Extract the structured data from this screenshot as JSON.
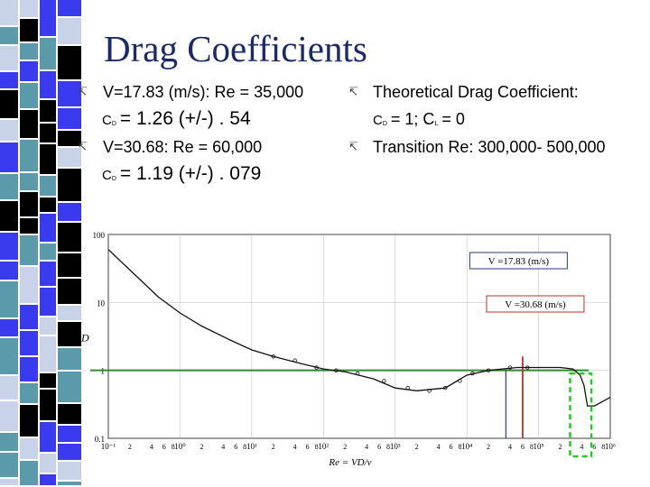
{
  "slide": {
    "title": "Drag Coefficients",
    "bullets_left": [
      {
        "text": "V=17.83 (m/s): Re = 35,000",
        "cd_value": "= 1.26  (+/-) . 54"
      },
      {
        "text": "V=30.68: Re = 60,000",
        "cd_value": "= 1.19  (+/-) . 079"
      }
    ],
    "bullets_right": [
      {
        "text": "Theoretical Drag Coefficient:",
        "cd_value": "= 1; C",
        "cl_sub": "L",
        "cl_value": "= 0"
      },
      {
        "text": "Transition Re: 300,000- 500,000"
      }
    ],
    "cd_symbol": "C",
    "cd_sub": "D",
    "bullet_glyph": "↸"
  },
  "colors": {
    "title": "#1a2a6a",
    "theory_line": "#2e8b2e",
    "v1_line": "#2a3a8a",
    "v2_line": "#c0302a",
    "transition_box": "#22cc22",
    "decor_black": "#000000",
    "decor_blue": "#3a3aee",
    "decor_teal": "#5a9aaa",
    "decor_light": "#c8d2e8"
  },
  "chart_data": {
    "type": "line",
    "xscale": "log",
    "yscale": "log",
    "xlim": [
      0.1,
      1000000
    ],
    "ylim": [
      0.1,
      100
    ],
    "ylabel": "C_D",
    "xlabel": "Re = VD/ν",
    "y_ticks": [
      "100",
      "10",
      "1",
      "0.1"
    ],
    "x_decade_labels": [
      "10⁻¹",
      "10⁰",
      "10¹",
      "10²",
      "10³",
      "10⁴",
      "10⁵",
      "10⁶"
    ],
    "x_minor_labels": [
      "2",
      "4",
      "6",
      "8"
    ],
    "series": [
      {
        "x": [
          0.1,
          0.2,
          0.5,
          1,
          2,
          5,
          10,
          20,
          50,
          100,
          200,
          500,
          1000,
          2000,
          5000,
          10000,
          20000,
          50000,
          100000,
          200000,
          300000,
          380000,
          430000,
          480000,
          600000,
          1000000
        ],
        "y": [
          60,
          30,
          12,
          7,
          4.5,
          2.8,
          2.0,
          1.6,
          1.25,
          1.05,
          0.95,
          0.75,
          0.55,
          0.5,
          0.55,
          0.85,
          1.0,
          1.1,
          1.1,
          1.1,
          1.05,
          0.85,
          0.6,
          0.3,
          0.3,
          0.4
        ]
      }
    ],
    "points": {
      "x": [
        20,
        40,
        80,
        150,
        300,
        700,
        1500,
        3000,
        5000,
        8000,
        12000,
        20000,
        40000,
        70000
      ],
      "y": [
        1.6,
        1.4,
        1.1,
        1.0,
        0.9,
        0.7,
        0.55,
        0.5,
        0.55,
        0.7,
        0.9,
        1.0,
        1.1,
        1.1
      ]
    },
    "reference_lines": {
      "theory_cd": 1,
      "v1_re": 35000,
      "v2_re": 60000
    },
    "annotations": [
      {
        "text": "V =17.83 (m/s)",
        "x": 35000
      },
      {
        "text": "V =30.68 (m/s)",
        "x": 60000
      }
    ],
    "transition_re": [
      300000,
      500000
    ]
  }
}
